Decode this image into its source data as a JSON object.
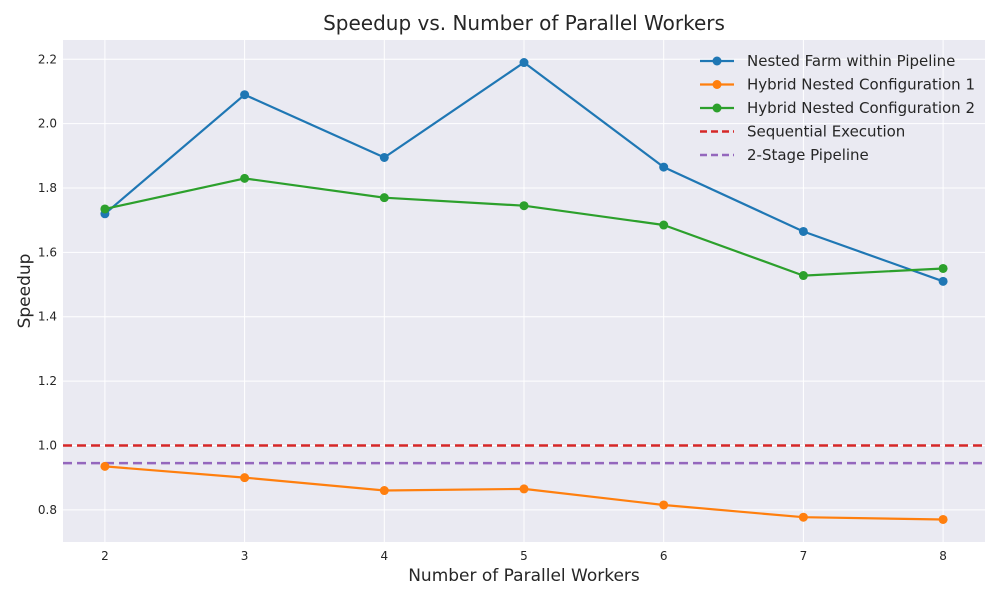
{
  "chart_data": {
    "type": "line",
    "title": "Speedup vs. Number of Parallel Workers",
    "xlabel": "Number of Parallel Workers",
    "ylabel": "Speedup",
    "x": [
      2,
      3,
      4,
      5,
      6,
      7,
      8
    ],
    "xlim": [
      1.7,
      8.3
    ],
    "ylim": [
      0.7,
      2.26
    ],
    "xticks": [
      "2",
      "3",
      "4",
      "5",
      "6",
      "7",
      "8"
    ],
    "yticks": [
      "0.8",
      "1.0",
      "1.2",
      "1.4",
      "1.6",
      "1.8",
      "2.0",
      "2.2"
    ],
    "grid": true,
    "legend_position": "top-right",
    "series": [
      {
        "name": "Nested Farm within Pipeline",
        "color": "#1f77b4",
        "style": "solid-marker",
        "values": [
          1.72,
          2.09,
          1.895,
          2.19,
          1.865,
          1.665,
          1.51
        ]
      },
      {
        "name": "Hybrid Nested Configuration 1",
        "color": "#ff7f0e",
        "style": "solid-marker",
        "values": [
          0.935,
          0.9,
          0.86,
          0.865,
          0.815,
          0.777,
          0.77
        ]
      },
      {
        "name": "Hybrid Nested Configuration 2",
        "color": "#2ca02c",
        "style": "solid-marker",
        "values": [
          1.735,
          1.83,
          1.77,
          1.745,
          1.685,
          1.528,
          1.55
        ]
      }
    ],
    "reference_lines": [
      {
        "name": "Sequential Execution",
        "color": "#d62728",
        "style": "dashed",
        "value": 1.0
      },
      {
        "name": "2-Stage Pipeline",
        "color": "#9467bd",
        "style": "dashed",
        "value": 0.945
      }
    ]
  }
}
